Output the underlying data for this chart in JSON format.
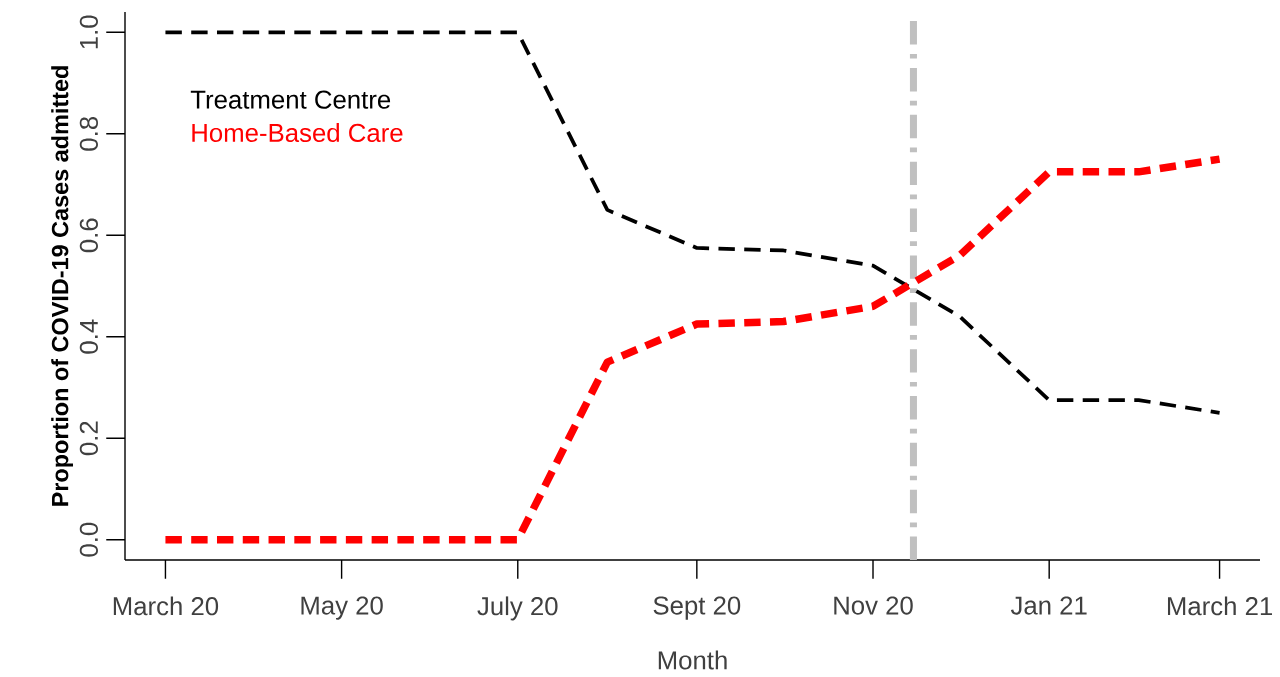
{
  "chart_data": {
    "type": "line",
    "xlabel": "Month",
    "ylabel": "Proportion of COVID-19 Cases admitted",
    "x": [
      "2020-03",
      "2020-04",
      "2020-05",
      "2020-06",
      "2020-07",
      "2020-08",
      "2020-09",
      "2020-10",
      "2020-11",
      "2020-12",
      "2021-01",
      "2021-02",
      "2021-03"
    ],
    "series": [
      {
        "name": "Treatment Centre",
        "color": "#000000",
        "values": [
          1.0,
          1.0,
          1.0,
          1.0,
          1.0,
          0.65,
          0.575,
          0.57,
          0.54,
          0.44,
          0.275,
          0.275,
          0.25
        ]
      },
      {
        "name": "Home-Based Care",
        "color": "#ff0000",
        "values": [
          0,
          0,
          0,
          0,
          0,
          0.35,
          0.425,
          0.43,
          0.46,
          0.56,
          0.725,
          0.725,
          0.75
        ]
      }
    ],
    "xlim": [
      "2020-02-16",
      "2021-03-15"
    ],
    "xticks": [
      {
        "value": "2020-03",
        "label": "March 20"
      },
      {
        "value": "2020-05",
        "label": "May 20"
      },
      {
        "value": "2020-07",
        "label": "July 20"
      },
      {
        "value": "2020-09",
        "label": "Sept 20"
      },
      {
        "value": "2020-11",
        "label": "Nov 20"
      },
      {
        "value": "2021-01",
        "label": "Jan 21"
      },
      {
        "value": "2021-03",
        "label": "March 21"
      }
    ],
    "ylim": [
      -0.04,
      1.04
    ],
    "yticks": [
      {
        "value": 0,
        "label": "0.0"
      },
      {
        "value": 0.2,
        "label": "0.2"
      },
      {
        "value": 0.4,
        "label": "0.4"
      },
      {
        "value": 0.6,
        "label": "0.6"
      },
      {
        "value": 0.8,
        "label": "0.8"
      },
      {
        "value": 1,
        "label": "1.0"
      }
    ],
    "ref_lines": [
      {
        "axis": "x",
        "value": "2020-11-15",
        "color": "#c0c0c0",
        "line_style": "dashed"
      }
    ],
    "legend": "top left",
    "line_style": "dashed",
    "marker": "none",
    "grid": false
  }
}
